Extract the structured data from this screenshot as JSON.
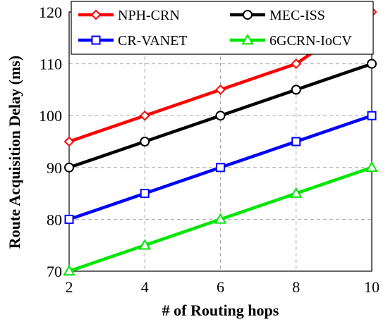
{
  "chart_data": {
    "type": "line",
    "xlabel": "# of Routing hops",
    "ylabel": "Route Acquisition Delay (ms)",
    "x": [
      2,
      4,
      6,
      8,
      10
    ],
    "xlim": [
      2,
      10
    ],
    "ylim": [
      70,
      120
    ],
    "x_ticks": [
      "2",
      "4",
      "6",
      "8",
      "10"
    ],
    "y_ticks": [
      "70",
      "80",
      "90",
      "100",
      "110",
      "120"
    ],
    "grid": true,
    "legend_position": "top",
    "series": [
      {
        "name": "NPH-CRN",
        "color": "#ff0000",
        "marker": "diamond",
        "values": [
          95,
          100,
          105,
          110,
          120
        ]
      },
      {
        "name": "MEC-ISS",
        "color": "#000000",
        "marker": "circle",
        "values": [
          90,
          95,
          100,
          105,
          110
        ]
      },
      {
        "name": "CR-VANET",
        "color": "#0000ff",
        "marker": "square",
        "values": [
          80,
          85,
          90,
          95,
          100
        ]
      },
      {
        "name": "6GCRN-IoCV",
        "color": "#00e600",
        "marker": "triangle",
        "values": [
          70,
          75,
          80,
          85,
          90
        ]
      }
    ]
  }
}
